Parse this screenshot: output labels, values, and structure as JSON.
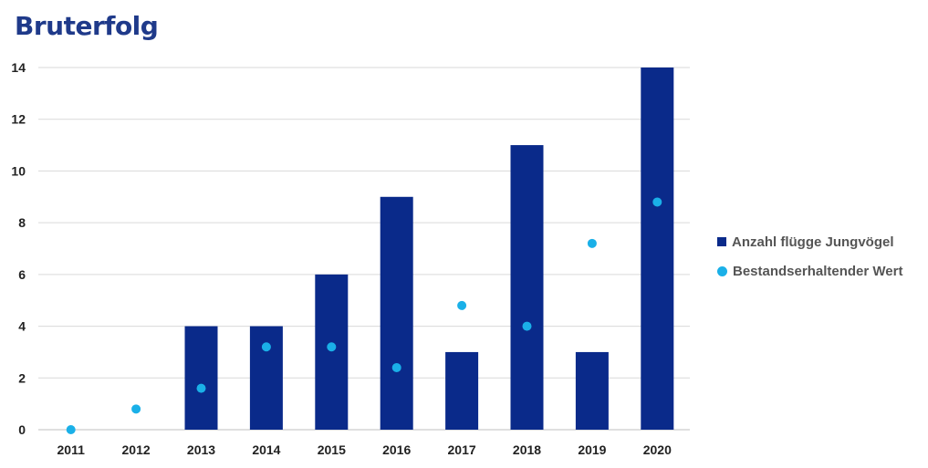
{
  "chart_data": {
    "type": "bar",
    "title": "Bruterfolg",
    "categories": [
      "2011",
      "2012",
      "2013",
      "2014",
      "2015",
      "2016",
      "2017",
      "2018",
      "2019",
      "2020"
    ],
    "series": [
      {
        "name": "Anzahl flügge Jungvögel",
        "kind": "bar",
        "color": "#0a2a8a",
        "values": [
          0,
          0,
          4,
          4,
          6,
          9,
          3,
          11,
          3,
          14
        ]
      },
      {
        "name": "Bestandserhaltender Wert",
        "kind": "scatter",
        "color": "#1ab0e8",
        "values": [
          0,
          0.8,
          1.6,
          3.2,
          3.2,
          2.4,
          4.8,
          4.0,
          7.2,
          8.8
        ]
      }
    ],
    "yticks": [
      0,
      2,
      4,
      6,
      8,
      10,
      12,
      14
    ],
    "ylim": [
      0,
      14
    ],
    "grid": true,
    "legend_position": "right"
  }
}
